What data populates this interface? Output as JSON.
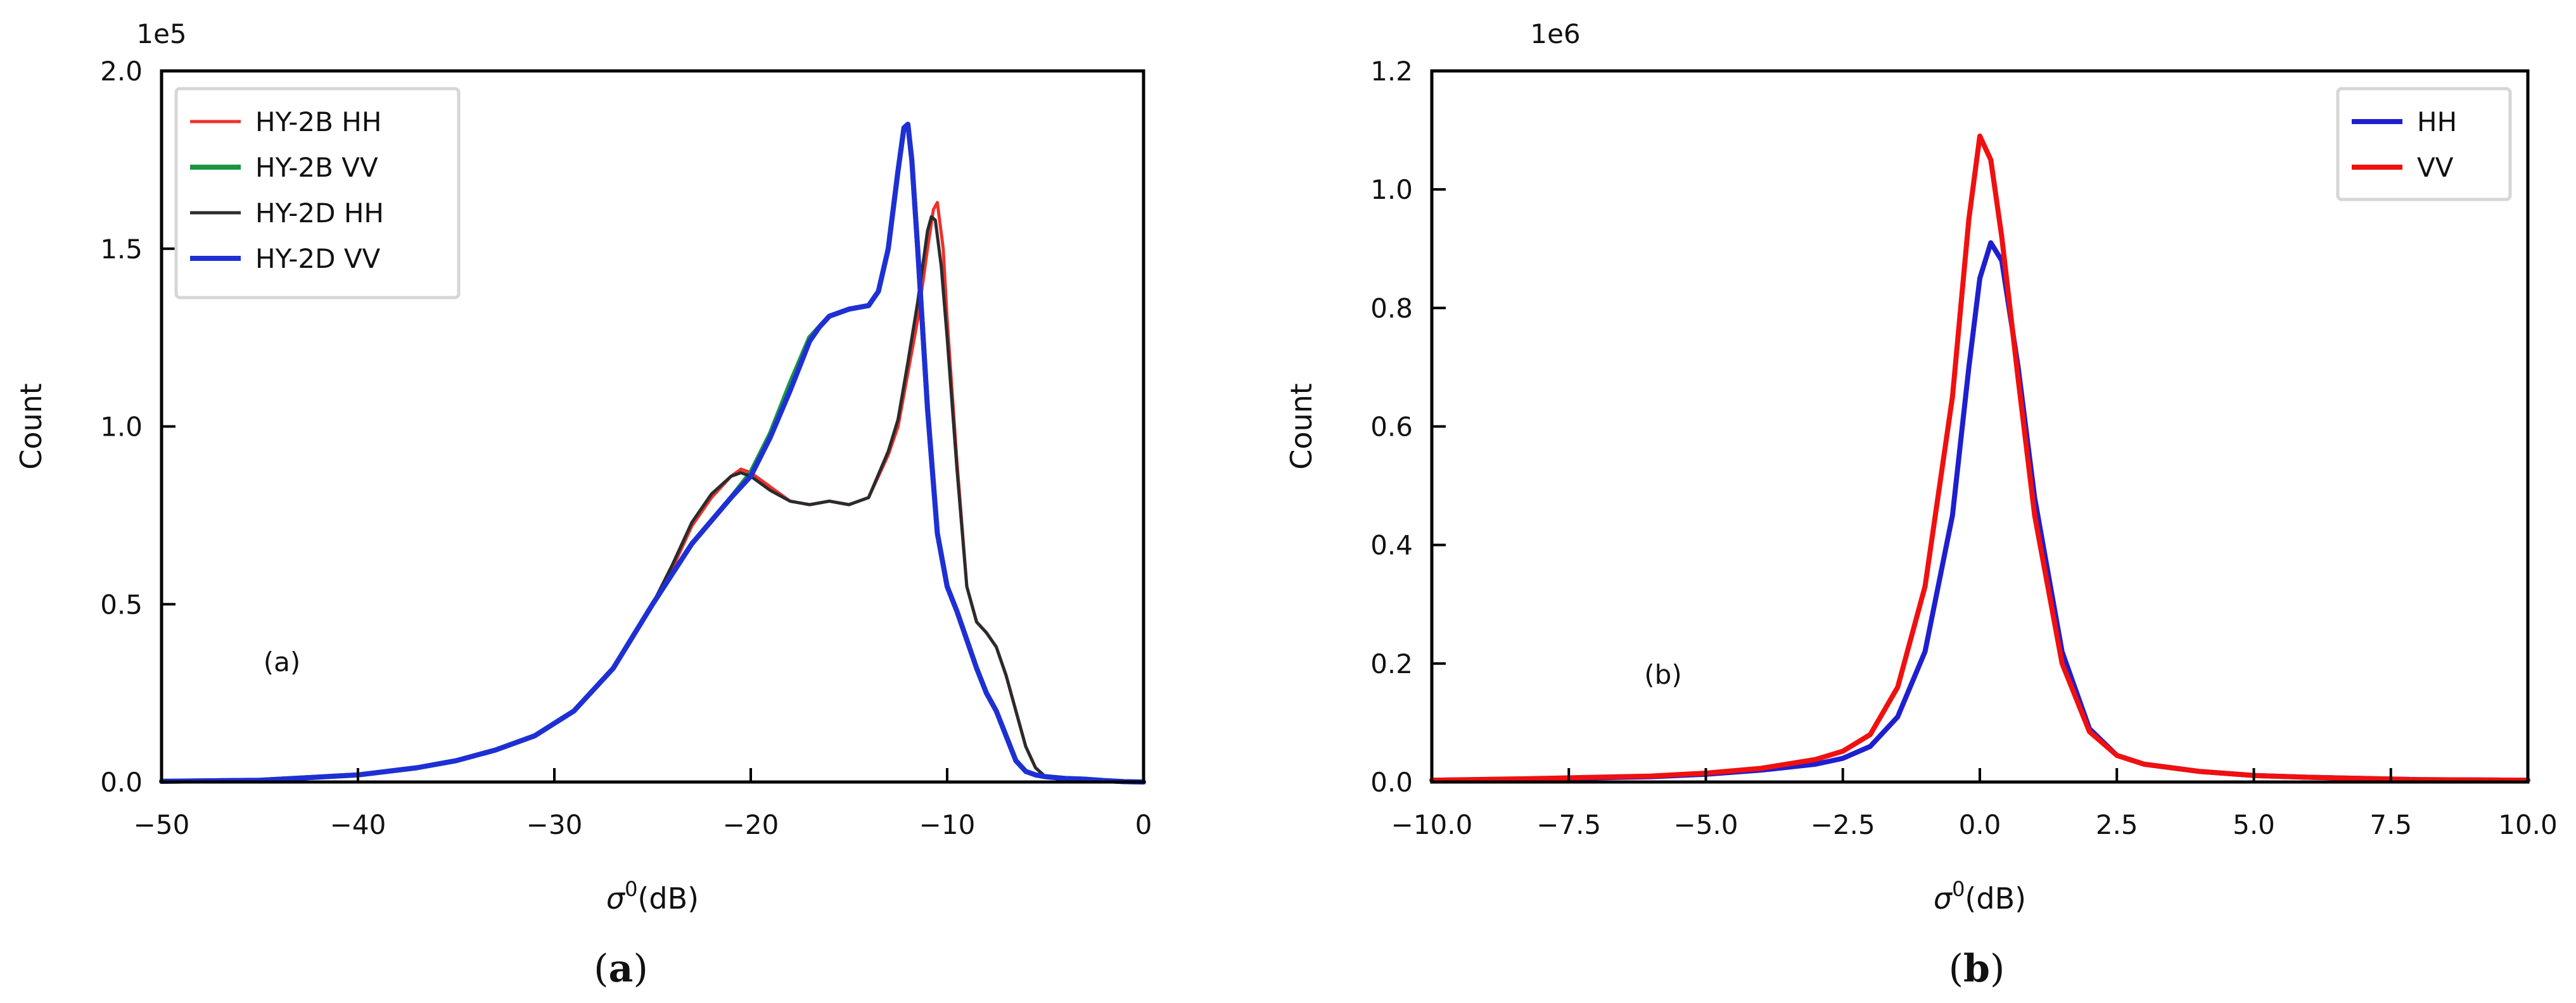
{
  "chart_data": [
    {
      "type": "line",
      "panel": "a",
      "caption_open": "(",
      "caption_letter": "a",
      "caption_close": ")",
      "annotation": "(a)",
      "xlabel_symbol": "σ",
      "xlabel_sup": "0",
      "xlabel_unit": "(dB)",
      "ylabel": "Count",
      "y_offset_label": "1e5",
      "xlim": [
        -50,
        0
      ],
      "ylim": [
        0,
        2.0
      ],
      "y_scale": 100000,
      "xticks": [
        -50,
        -40,
        -30,
        -20,
        -10,
        0
      ],
      "xtick_labels": [
        "−50",
        "−40",
        "−30",
        "−20",
        "−10",
        "0"
      ],
      "yticks": [
        0.0,
        0.5,
        1.0,
        1.5,
        2.0
      ],
      "ytick_labels": [
        "0.0",
        "0.5",
        "1.0",
        "1.5",
        "2.0"
      ],
      "grid": false,
      "legend_position": "top-left",
      "series": [
        {
          "name": "HY-2B HH",
          "color": "#f0302b",
          "x": [
            -50,
            -45,
            -40,
            -37,
            -35,
            -33,
            -31,
            -29,
            -27,
            -25,
            -24,
            -23,
            -22,
            -21,
            -20.5,
            -20,
            -19,
            -18,
            -17,
            -16,
            -15,
            -14,
            -13,
            -12.5,
            -12,
            -11.5,
            -11,
            -10.7,
            -10.5,
            -10.2,
            -10,
            -9.5,
            -9,
            -8.5,
            -8,
            -7.5,
            -7,
            -6.5,
            -6,
            -5.5,
            -5,
            -4,
            -3,
            -2,
            -1,
            0
          ],
          "values": [
            0.002,
            0.005,
            0.02,
            0.04,
            0.06,
            0.09,
            0.13,
            0.2,
            0.32,
            0.5,
            0.6,
            0.72,
            0.8,
            0.86,
            0.88,
            0.87,
            0.83,
            0.79,
            0.78,
            0.79,
            0.78,
            0.8,
            0.92,
            1.0,
            1.15,
            1.3,
            1.5,
            1.61,
            1.63,
            1.5,
            1.3,
            0.9,
            0.55,
            0.45,
            0.42,
            0.38,
            0.3,
            0.2,
            0.1,
            0.04,
            0.015,
            0.005,
            0.002,
            0.001,
            0.0,
            0.0
          ]
        },
        {
          "name": "HY-2B VV",
          "color": "#1a9641",
          "x": [
            -50,
            -45,
            -40,
            -37,
            -35,
            -33,
            -31,
            -29,
            -27,
            -25,
            -23,
            -21,
            -20,
            -19,
            -18,
            -17,
            -16.5,
            -16,
            -15,
            -14,
            -13.5,
            -13,
            -12.5,
            -12.2,
            -12,
            -11.8,
            -11.5,
            -11,
            -10.5,
            -10,
            -9.5,
            -9,
            -8.5,
            -8,
            -7.5,
            -7,
            -6.5,
            -6,
            -5.5,
            -5,
            -4,
            -3,
            -2,
            -1,
            0
          ],
          "values": [
            0.002,
            0.005,
            0.02,
            0.04,
            0.06,
            0.09,
            0.13,
            0.2,
            0.32,
            0.5,
            0.67,
            0.8,
            0.87,
            0.98,
            1.12,
            1.25,
            1.28,
            1.31,
            1.33,
            1.34,
            1.38,
            1.5,
            1.72,
            1.84,
            1.85,
            1.75,
            1.5,
            1.05,
            0.7,
            0.55,
            0.48,
            0.4,
            0.32,
            0.25,
            0.2,
            0.13,
            0.06,
            0.03,
            0.02,
            0.015,
            0.01,
            0.008,
            0.004,
            0.001,
            0.0
          ]
        },
        {
          "name": "HY-2D HH",
          "color": "#2b2b2b",
          "x": [
            -50,
            -45,
            -40,
            -37,
            -35,
            -33,
            -31,
            -29,
            -27,
            -25,
            -24,
            -23,
            -22,
            -21,
            -20.5,
            -20,
            -19,
            -18,
            -17,
            -16,
            -15,
            -14,
            -13,
            -12.5,
            -12,
            -11.5,
            -11,
            -10.8,
            -10.6,
            -10.3,
            -10,
            -9.5,
            -9,
            -8.5,
            -8,
            -7.5,
            -7,
            -6.5,
            -6,
            -5.5,
            -5,
            -4,
            -3,
            -2,
            -1,
            0
          ],
          "values": [
            0.002,
            0.005,
            0.02,
            0.04,
            0.06,
            0.09,
            0.13,
            0.2,
            0.32,
            0.5,
            0.61,
            0.73,
            0.81,
            0.86,
            0.87,
            0.86,
            0.82,
            0.79,
            0.78,
            0.79,
            0.78,
            0.8,
            0.93,
            1.02,
            1.18,
            1.35,
            1.55,
            1.59,
            1.58,
            1.45,
            1.25,
            0.88,
            0.55,
            0.45,
            0.42,
            0.38,
            0.3,
            0.2,
            0.1,
            0.04,
            0.015,
            0.005,
            0.002,
            0.001,
            0.0,
            0.0
          ]
        },
        {
          "name": "HY-2D VV",
          "color": "#1f2fd6",
          "x": [
            -50,
            -45,
            -40,
            -37,
            -35,
            -33,
            -31,
            -29,
            -27,
            -25,
            -23,
            -21,
            -20,
            -19,
            -18,
            -17,
            -16.5,
            -16,
            -15,
            -14,
            -13.5,
            -13,
            -12.5,
            -12.2,
            -12,
            -11.8,
            -11.5,
            -11,
            -10.5,
            -10,
            -9.5,
            -9,
            -8.5,
            -8,
            -7.5,
            -7,
            -6.5,
            -6,
            -5.5,
            -5,
            -4,
            -3,
            -2,
            -1,
            0
          ],
          "values": [
            0.002,
            0.005,
            0.02,
            0.04,
            0.06,
            0.09,
            0.13,
            0.2,
            0.32,
            0.5,
            0.67,
            0.8,
            0.86,
            0.97,
            1.1,
            1.24,
            1.28,
            1.31,
            1.33,
            1.34,
            1.38,
            1.5,
            1.72,
            1.84,
            1.85,
            1.75,
            1.5,
            1.05,
            0.7,
            0.55,
            0.48,
            0.4,
            0.32,
            0.25,
            0.2,
            0.13,
            0.06,
            0.03,
            0.02,
            0.015,
            0.01,
            0.008,
            0.004,
            0.001,
            0.0
          ]
        }
      ]
    },
    {
      "type": "line",
      "panel": "b",
      "caption_open": "(",
      "caption_letter": "b",
      "caption_close": ")",
      "annotation": "(b)",
      "xlabel_symbol": "σ",
      "xlabel_sup": "0",
      "xlabel_unit": "(dB)",
      "ylabel": "Count",
      "y_offset_label": "1e6",
      "xlim": [
        -10.0,
        10.0
      ],
      "ylim": [
        0,
        1.2
      ],
      "y_scale": 1000000,
      "xticks": [
        -10.0,
        -7.5,
        -5.0,
        -2.5,
        0.0,
        2.5,
        5.0,
        7.5,
        10.0
      ],
      "xtick_labels": [
        "−10.0",
        "−7.5",
        "−5.0",
        "−2.5",
        "0.0",
        "2.5",
        "5.0",
        "7.5",
        "10.0"
      ],
      "yticks": [
        0.0,
        0.2,
        0.4,
        0.6,
        0.8,
        1.0,
        1.2
      ],
      "ytick_labels": [
        "0.0",
        "0.2",
        "0.4",
        "0.6",
        "0.8",
        "1.0",
        "1.2"
      ],
      "grid": false,
      "legend_position": "top-right",
      "series": [
        {
          "name": "HH",
          "color": "#1f1fd0",
          "x": [
            -10,
            -8,
            -6,
            -5,
            -4,
            -3,
            -2.5,
            -2,
            -1.5,
            -1,
            -0.5,
            -0.2,
            0,
            0.2,
            0.4,
            0.7,
            1,
            1.5,
            2,
            2.5,
            3,
            4,
            5,
            6,
            8,
            10
          ],
          "values": [
            0.003,
            0.005,
            0.009,
            0.013,
            0.02,
            0.03,
            0.04,
            0.06,
            0.11,
            0.22,
            0.45,
            0.7,
            0.85,
            0.91,
            0.88,
            0.7,
            0.48,
            0.22,
            0.09,
            0.045,
            0.03,
            0.018,
            0.011,
            0.008,
            0.004,
            0.003
          ]
        },
        {
          "name": "VV",
          "color": "#f01010",
          "x": [
            -10,
            -8,
            -6,
            -5,
            -4,
            -3,
            -2.5,
            -2,
            -1.5,
            -1,
            -0.5,
            -0.2,
            0,
            0.2,
            0.4,
            0.7,
            1,
            1.5,
            2,
            2.5,
            3,
            4,
            5,
            6,
            8,
            10
          ],
          "values": [
            0.003,
            0.006,
            0.01,
            0.015,
            0.023,
            0.038,
            0.052,
            0.08,
            0.16,
            0.33,
            0.65,
            0.95,
            1.09,
            1.05,
            0.92,
            0.68,
            0.45,
            0.2,
            0.085,
            0.045,
            0.03,
            0.018,
            0.011,
            0.008,
            0.004,
            0.003
          ]
        }
      ]
    }
  ]
}
